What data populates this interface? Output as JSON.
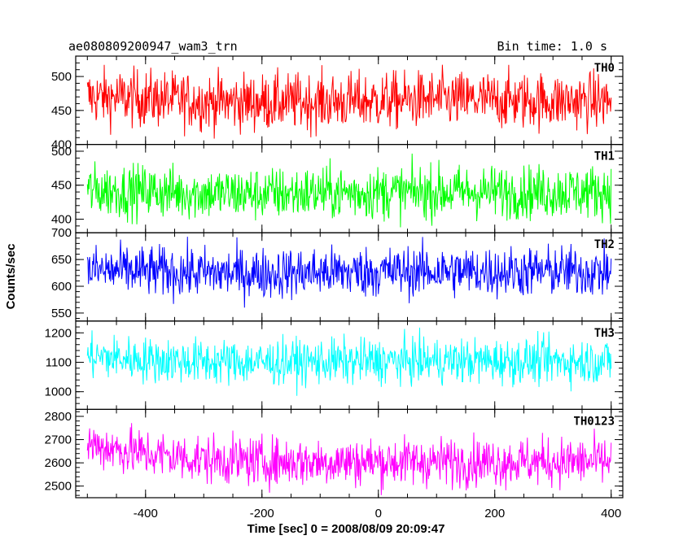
{
  "header": {
    "title": "ae080809200947_wam3_trn",
    "bin_time": "Bin time: 1.0 s"
  },
  "y_axis_label": "Counts/sec",
  "x_axis_label": "Time [sec] 0 = 2008/08/09 20:09:47",
  "chart_data": {
    "type": "line",
    "title": "ae080809200947_wam3_trn",
    "xlabel": "Time [sec] 0 = 2008/08/09 20:09:47",
    "ylabel": "Counts/sec",
    "xlim": [
      -520,
      420
    ],
    "x_ticks": [
      -400,
      -200,
      0,
      200,
      400
    ],
    "x_range": [
      -500,
      400
    ],
    "bin_time_s": 1.0,
    "grid": false,
    "panels": [
      {
        "name": "TH0",
        "color": "#ff0000",
        "ylim": [
          400,
          530
        ],
        "y_ticks": [
          400,
          450,
          500
        ],
        "mean": 465,
        "spread": 30,
        "x": [
          -500,
          -400,
          -300,
          -200,
          -100,
          0,
          100,
          200,
          300,
          400
        ],
        "values": [
          470,
          468,
          463,
          462,
          463,
          464,
          466,
          465,
          464,
          464
        ]
      },
      {
        "name": "TH1",
        "color": "#00ff00",
        "ylim": [
          380,
          510
        ],
        "y_ticks": [
          400,
          450,
          500
        ],
        "mean": 440,
        "spread": 28,
        "x": [
          -500,
          -400,
          -300,
          -200,
          -100,
          0,
          100,
          200,
          300,
          400
        ],
        "values": [
          442,
          441,
          438,
          437,
          439,
          439,
          440,
          440,
          440,
          441
        ]
      },
      {
        "name": "TH2",
        "color": "#0000ff",
        "ylim": [
          535,
          700
        ],
        "y_ticks": [
          550,
          600,
          650,
          700
        ],
        "mean": 628,
        "spread": 34,
        "x": [
          -500,
          -400,
          -300,
          -200,
          -100,
          0,
          100,
          200,
          300,
          400
        ],
        "values": [
          630,
          628,
          625,
          624,
          626,
          627,
          628,
          627,
          628,
          627
        ]
      },
      {
        "name": "TH3",
        "color": "#00ffff",
        "ylim": [
          940,
          1240
        ],
        "y_ticks": [
          1000,
          1100,
          1200
        ],
        "mean": 1105,
        "spread": 55,
        "x": [
          -500,
          -400,
          -300,
          -200,
          -100,
          0,
          100,
          200,
          300,
          400
        ],
        "values": [
          1120,
          1108,
          1102,
          1100,
          1102,
          1103,
          1104,
          1104,
          1103,
          1104
        ]
      },
      {
        "name": "TH0123",
        "color": "#ff00ff",
        "ylim": [
          2450,
          2830
        ],
        "y_ticks": [
          2500,
          2600,
          2700,
          2800
        ],
        "mean": 2610,
        "spread": 75,
        "x": [
          -500,
          -400,
          -300,
          -200,
          -100,
          0,
          100,
          200,
          300,
          400
        ],
        "values": [
          2680,
          2640,
          2615,
          2605,
          2605,
          2605,
          2605,
          2605,
          2605,
          2605
        ]
      }
    ]
  }
}
